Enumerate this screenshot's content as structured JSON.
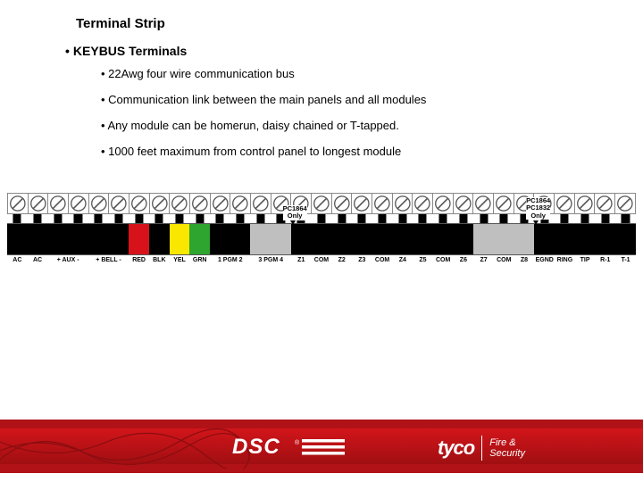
{
  "title": "Terminal Strip",
  "subtitle": "KEYBUS Terminals",
  "bullets": [
    "22Awg four wire communication bus",
    "Communication link between the main panels and all modules",
    "Any module can be homerun, daisy chained or T-tapped.",
    "1000 feet maximum from control panel to longest module"
  ],
  "colors": {
    "black": "#000000",
    "white": "#ffffff",
    "red": "#d8121a",
    "yellow": "#f9e700",
    "green": "#2ea52e",
    "gray": "#bfbfbf",
    "screw_stroke": "#555555"
  },
  "terminals": [
    {
      "label": "AC",
      "color": "#000000"
    },
    {
      "label": "AC",
      "color": "#000000"
    },
    {
      "label": "+ AUX -",
      "color": "#000000",
      "span": 2
    },
    {
      "label": "+ BELL -",
      "color": "#000000",
      "span": 2
    },
    {
      "label": "RED",
      "color": "#d8121a"
    },
    {
      "label": "BLK",
      "color": "#000000"
    },
    {
      "label": "YEL",
      "color": "#f9e700"
    },
    {
      "label": "GRN",
      "color": "#2ea52e"
    },
    {
      "label": "1 PGM 2",
      "color": "#000000",
      "span": 2
    },
    {
      "label": "3 PGM 4",
      "color": "#bfbfbf",
      "span": 2
    },
    {
      "label": "Z1",
      "color": "#000000"
    },
    {
      "label": "COM",
      "color": "#000000"
    },
    {
      "label": "Z2",
      "color": "#000000"
    },
    {
      "label": "Z3",
      "color": "#000000"
    },
    {
      "label": "COM",
      "color": "#000000"
    },
    {
      "label": "Z4",
      "color": "#000000"
    },
    {
      "label": "Z5",
      "color": "#000000"
    },
    {
      "label": "COM",
      "color": "#000000"
    },
    {
      "label": "Z6",
      "color": "#000000"
    },
    {
      "label": "Z7",
      "color": "#bfbfbf"
    },
    {
      "label": "COM",
      "color": "#bfbfbf"
    },
    {
      "label": "Z8",
      "color": "#bfbfbf"
    },
    {
      "label": "EGND",
      "color": "#000000"
    },
    {
      "label": "RING",
      "color": "#000000"
    },
    {
      "label": "TIP",
      "color": "#000000"
    },
    {
      "label": "R-1",
      "color": "#000000"
    },
    {
      "label": "T-1",
      "color": "#000000"
    }
  ],
  "notes": [
    {
      "text": "PC1864\nOnly",
      "after_index": 13
    },
    {
      "text": "PC1864\nPC1832\nOnly",
      "after_index": 25
    }
  ],
  "footer": {
    "dsc": "DSC",
    "tyco": "tyco",
    "fs1": "Fire &",
    "fs2": "Security",
    "red1": "#b01217",
    "red2": "#d2151a"
  }
}
